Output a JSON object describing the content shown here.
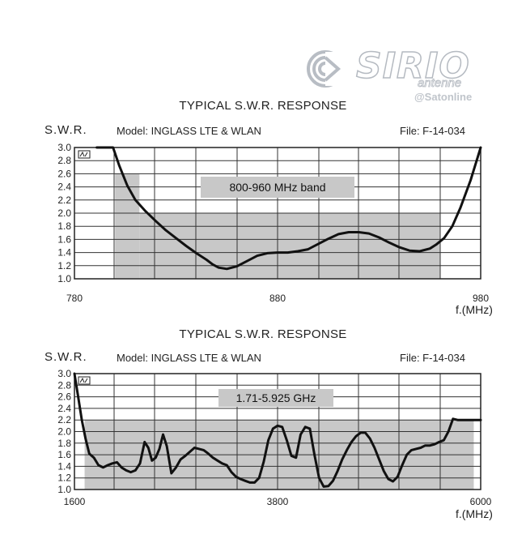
{
  "logo": {
    "word": "SIRIO",
    "sub": "antenne",
    "handle": "@Satonline"
  },
  "chart_data": [
    {
      "type": "line",
      "title": "TYPICAL S.W.R. RESPONSE",
      "ylabel": "S.W.R.",
      "model": "Model: INGLASS LTE & WLAN",
      "file": "File: F-14-034",
      "xlabel": "f.(MHz)",
      "xlim": [
        780,
        980
      ],
      "ylim": [
        1.0,
        3.0
      ],
      "x_ticks": [
        "780",
        "880",
        "980"
      ],
      "y_ticks": [
        "1.0",
        "1.2",
        "1.4",
        "1.6",
        "1.8",
        "2.0",
        "2.2",
        "2.4",
        "2.6",
        "2.8",
        "3.0"
      ],
      "grid": true,
      "band_label": "800-960 MHz band",
      "band_shading": [
        {
          "x_start": 800,
          "x_end": 812,
          "y_top": 2.6
        },
        {
          "x_start": 812,
          "x_end": 960,
          "y_top": 2.0
        }
      ],
      "series": [
        {
          "x": [
            791,
            799,
            802,
            806,
            810,
            815,
            820,
            825,
            830,
            835,
            840,
            845,
            848,
            851,
            855,
            860,
            865,
            870,
            875,
            880,
            885,
            890,
            895,
            900,
            905,
            910,
            915,
            920,
            925,
            930,
            935,
            940,
            945,
            950,
            955,
            958,
            962,
            966,
            970,
            975,
            978,
            980
          ],
          "y": [
            3.0,
            3.0,
            2.73,
            2.42,
            2.2,
            2.03,
            1.88,
            1.74,
            1.62,
            1.5,
            1.39,
            1.29,
            1.22,
            1.17,
            1.15,
            1.19,
            1.27,
            1.35,
            1.39,
            1.4,
            1.4,
            1.42,
            1.45,
            1.53,
            1.61,
            1.68,
            1.71,
            1.71,
            1.69,
            1.63,
            1.55,
            1.48,
            1.43,
            1.42,
            1.46,
            1.52,
            1.62,
            1.8,
            2.08,
            2.5,
            2.8,
            3.0
          ]
        }
      ]
    },
    {
      "type": "line",
      "title": "TYPICAL S.W.R. RESPONSE",
      "ylabel": "S.W.R.",
      "model": "Model: INGLASS LTE & WLAN",
      "file": "File: F-14-034",
      "xlabel": "f.(MHz)",
      "xlim": [
        1600,
        6000
      ],
      "ylim": [
        1.0,
        3.0
      ],
      "x_ticks": [
        "1600",
        "3800",
        "6000"
      ],
      "y_ticks": [
        "1.0",
        "1.2",
        "1.4",
        "1.6",
        "1.8",
        "2.0",
        "2.2",
        "2.4",
        "2.6",
        "2.8",
        "3.0"
      ],
      "grid": true,
      "band_label": "1.71-5.925 GHz",
      "band_shading": [
        {
          "x_start": 1710,
          "x_end": 5925,
          "y_top": 2.2
        }
      ],
      "series": [
        {
          "x": [
            1600,
            1640,
            1680,
            1720,
            1760,
            1810,
            1860,
            1910,
            1960,
            2010,
            2060,
            2110,
            2160,
            2210,
            2260,
            2310,
            2360,
            2400,
            2440,
            2480,
            2520,
            2560,
            2600,
            2650,
            2700,
            2750,
            2800,
            2850,
            2900,
            2950,
            3000,
            3050,
            3100,
            3150,
            3200,
            3250,
            3300,
            3350,
            3400,
            3450,
            3500,
            3550,
            3600,
            3650,
            3700,
            3750,
            3800,
            3850,
            3900,
            3950,
            4000,
            4050,
            4100,
            4150,
            4200,
            4250,
            4300,
            4350,
            4400,
            4450,
            4500,
            4550,
            4600,
            4650,
            4700,
            4750,
            4800,
            4850,
            4900,
            4950,
            5000,
            5050,
            5100,
            5150,
            5200,
            5250,
            5300,
            5350,
            5400,
            5450,
            5500,
            5550,
            5600,
            5650,
            5700,
            5750,
            5800,
            5850,
            5900,
            5950,
            6000
          ],
          "y": [
            3.0,
            2.6,
            2.2,
            1.88,
            1.62,
            1.55,
            1.42,
            1.38,
            1.42,
            1.45,
            1.47,
            1.38,
            1.33,
            1.3,
            1.33,
            1.45,
            1.82,
            1.72,
            1.5,
            1.55,
            1.7,
            1.95,
            1.75,
            1.28,
            1.38,
            1.52,
            1.58,
            1.65,
            1.72,
            1.7,
            1.68,
            1.62,
            1.55,
            1.5,
            1.45,
            1.42,
            1.3,
            1.22,
            1.18,
            1.15,
            1.12,
            1.12,
            1.2,
            1.48,
            1.85,
            2.05,
            2.1,
            2.08,
            1.85,
            1.58,
            1.55,
            1.95,
            2.08,
            2.05,
            1.6,
            1.2,
            1.05,
            1.06,
            1.15,
            1.32,
            1.52,
            1.68,
            1.82,
            1.92,
            1.98,
            1.98,
            1.88,
            1.72,
            1.52,
            1.32,
            1.18,
            1.14,
            1.22,
            1.42,
            1.6,
            1.68,
            1.7,
            1.72,
            1.76,
            1.76,
            1.78,
            1.82,
            1.85,
            2.0,
            2.22,
            2.2,
            2.2,
            2.2,
            2.2,
            2.2,
            2.2
          ]
        }
      ]
    }
  ]
}
